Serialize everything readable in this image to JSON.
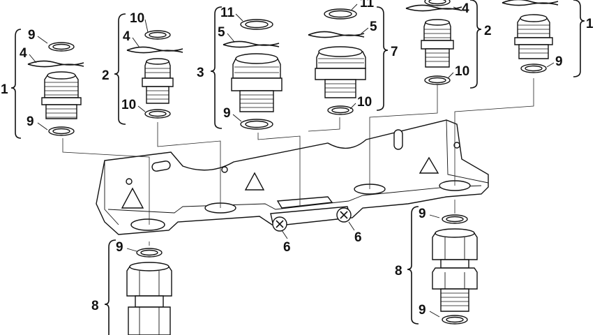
{
  "diagram": {
    "labels": {
      "group1_left": "1",
      "group1_ring_top": "9",
      "group1_clip": "4",
      "group1_ring_bottom": "9",
      "group2_left": "2",
      "group2_ring_top": "10",
      "group2_clip": "4",
      "group2_ring_bottom": "10",
      "group3": "3",
      "group3_ring_top": "11",
      "group3_clip": "5",
      "group3_ring_bottom": "9",
      "group7": "7",
      "group7_ring_top": "11",
      "group7_clip": "5",
      "group7_ring_bottom": "10",
      "group2_right": "2",
      "group2r_clip": "4",
      "group2r_ring_bottom": "10",
      "group1_right": "1",
      "group1r_ring_bottom": "9",
      "screw_left": "6",
      "screw_right": "6",
      "union_left": "8",
      "union_left_ring": "9",
      "union_right": "8",
      "union_right_ring_top": "9",
      "union_right_ring_bottom": "9"
    }
  }
}
